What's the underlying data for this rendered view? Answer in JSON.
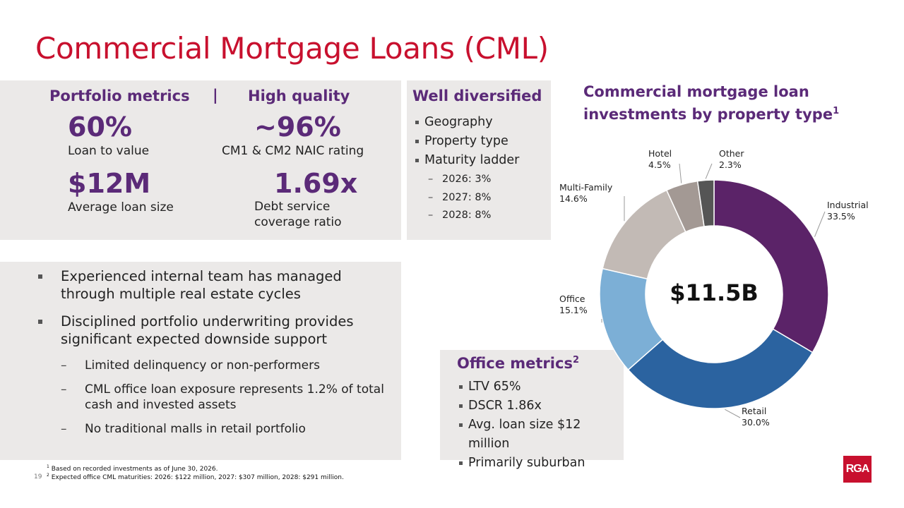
{
  "title": "Commercial Mortgage Loans (CML)",
  "metrics": {
    "header_left": "Portfolio metrics",
    "separator": "|",
    "header_right": "High quality",
    "ltv_value": "60%",
    "ltv_label": "Loan to value",
    "naic_value": "~96%",
    "naic_label": "CM1 & CM2 NAIC rating",
    "avg_value": "$12M",
    "avg_label": "Average loan size",
    "dscr_value": "1.69x",
    "dscr_label": "Debt service coverage ratio"
  },
  "diversified": {
    "header": "Well diversified",
    "items": [
      "Geography",
      "Property type",
      "Maturity ladder"
    ],
    "sub_items": [
      "2026: 3%",
      "2027: 8%",
      "2028: 8%"
    ]
  },
  "bullets": {
    "items": [
      "Experienced internal team has managed through multiple real estate cycles",
      "Disciplined portfolio underwriting provides significant expected downside support"
    ],
    "sub_items": [
      "Limited delinquency or non-performers",
      "CML office loan exposure represents 1.2% of total cash and invested assets",
      "No traditional malls in retail portfolio"
    ]
  },
  "office": {
    "header": "Office metrics",
    "sup": "2",
    "items": [
      "LTV 65%",
      "DSCR 1.86x",
      "Avg. loan size $12 million",
      "Primarily suburban"
    ]
  },
  "chart_data": {
    "type": "pie",
    "title": "Commercial mortgage loan investments by property type",
    "title_sup": "1",
    "center_label": "$11.5B",
    "categories": [
      "Industrial",
      "Retail",
      "Office",
      "Multi-Family",
      "Hotel",
      "Other"
    ],
    "values": [
      33.5,
      30.0,
      15.1,
      14.6,
      4.5,
      2.3
    ],
    "value_labels": [
      "33.5%",
      "30.0%",
      "15.1%",
      "14.6%",
      "4.5%",
      "2.3%"
    ],
    "colors": [
      "#5b2368",
      "#2b63a0",
      "#7cafd6",
      "#c2bab5",
      "#a39994",
      "#555555"
    ]
  },
  "footnotes": {
    "f1": "Based on recorded investments as of June 30, 2026.",
    "f1_mark": "1",
    "f2": "Expected office CML maturities: 2026: $122 million, 2027: $307 million, 2028: $291 million.",
    "f2_mark": "2"
  },
  "page_number": "19",
  "logo": "RGA",
  "colors": {
    "brand_red": "#c8102e",
    "purple": "#5b2a78",
    "panel": "#ebe9e8"
  }
}
